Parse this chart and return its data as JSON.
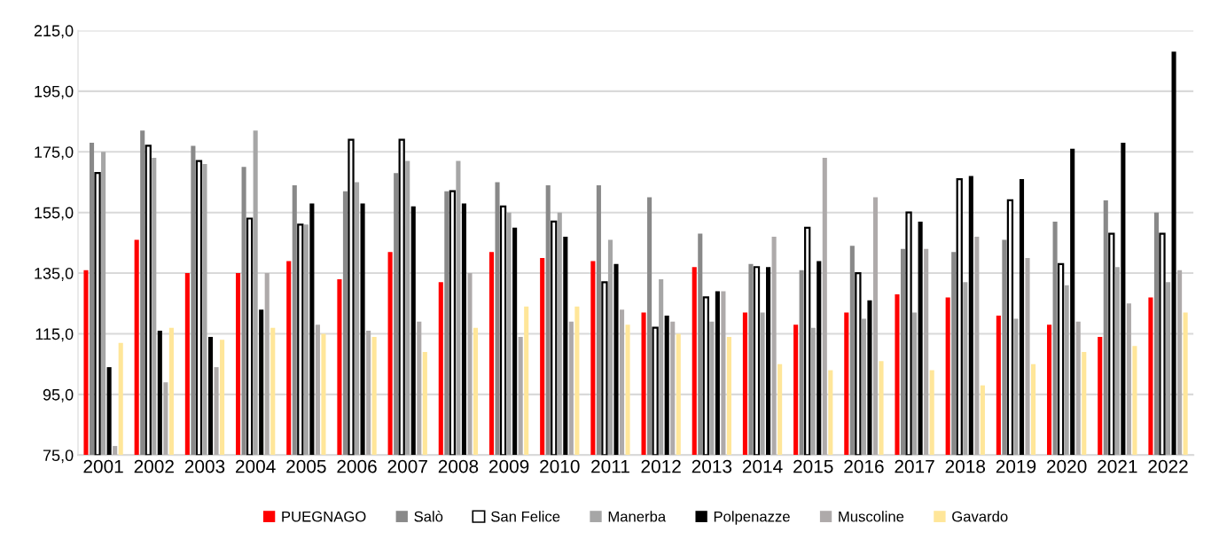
{
  "chart_data": {
    "type": "bar",
    "categories": [
      "2001",
      "2002",
      "2003",
      "2004",
      "2005",
      "2006",
      "2007",
      "2008",
      "2009",
      "2010",
      "2011",
      "2012",
      "2013",
      "2014",
      "2015",
      "2016",
      "2017",
      "2018",
      "2019",
      "2020",
      "2021",
      "2022"
    ],
    "series": [
      {
        "name": "PUEGNAGO",
        "color": "#ff0000",
        "values": [
          136,
          146,
          135,
          135,
          139,
          133,
          142,
          132,
          142,
          140,
          139,
          122,
          137,
          122,
          118,
          122,
          128,
          127,
          121,
          118,
          114,
          127
        ]
      },
      {
        "name": "Salò",
        "color": "#898989",
        "values": [
          178,
          182,
          177,
          170,
          164,
          162,
          168,
          162,
          165,
          164,
          164,
          160,
          148,
          138,
          136,
          144,
          143,
          142,
          146,
          152,
          159,
          155
        ]
      },
      {
        "name": "San Felice",
        "color": "#ffffff",
        "values": [
          168,
          177,
          172,
          153,
          151,
          179,
          179,
          162,
          157,
          152,
          132,
          117,
          127,
          137,
          150,
          135,
          155,
          166,
          159,
          138,
          148,
          148
        ]
      },
      {
        "name": "Manerba",
        "color": "#a6a6a6",
        "values": [
          175,
          173,
          171,
          182,
          151,
          165,
          172,
          172,
          155,
          155,
          146,
          133,
          119,
          122,
          117,
          120,
          122,
          132,
          120,
          131,
          137,
          132
        ]
      },
      {
        "name": "Polpenazze",
        "color": "#000000",
        "values": [
          104,
          116,
          114,
          123,
          158,
          158,
          157,
          158,
          150,
          147,
          138,
          121,
          129,
          137,
          139,
          126,
          152,
          167,
          166,
          176,
          178,
          208
        ]
      },
      {
        "name": "Muscoline",
        "color": "#aeaaaa",
        "values": [
          78,
          99,
          104,
          135,
          118,
          116,
          119,
          135,
          114,
          119,
          123,
          119,
          129,
          147,
          173,
          160,
          143,
          147,
          140,
          119,
          125,
          136
        ]
      },
      {
        "name": "Gavardo",
        "color": "#ffe699",
        "values": [
          112,
          117,
          113,
          117,
          115,
          114,
          109,
          117,
          124,
          124,
          118,
          115,
          114,
          105,
          103,
          106,
          103,
          98,
          105,
          109,
          111,
          122
        ]
      }
    ],
    "ylim": [
      75,
      215
    ],
    "yticks": [
      {
        "value": 75,
        "label": "75,0"
      },
      {
        "value": 95,
        "label": "95,0"
      },
      {
        "value": 115,
        "label": "115,0"
      },
      {
        "value": 135,
        "label": "135,0"
      },
      {
        "value": 155,
        "label": "155,0"
      },
      {
        "value": 175,
        "label": "175,0"
      },
      {
        "value": 195,
        "label": "195,0"
      },
      {
        "value": 215,
        "label": "215,0"
      }
    ],
    "grid": "y",
    "legend": "bottom"
  }
}
